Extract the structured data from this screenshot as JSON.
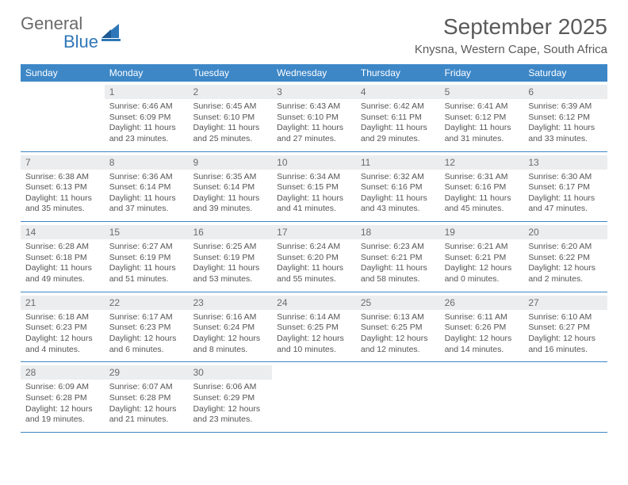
{
  "brand": {
    "general": "General",
    "blue": "Blue"
  },
  "title": "September 2025",
  "location": "Knysna, Western Cape, South Africa",
  "accent_color": "#3d87c7",
  "daynum_bg": "#ecedef",
  "dow": [
    "Sunday",
    "Monday",
    "Tuesday",
    "Wednesday",
    "Thursday",
    "Friday",
    "Saturday"
  ],
  "weeks": [
    [
      {
        "n": "",
        "sr": "",
        "ss": "",
        "dl": ""
      },
      {
        "n": "1",
        "sr": "Sunrise: 6:46 AM",
        "ss": "Sunset: 6:09 PM",
        "dl": "Daylight: 11 hours and 23 minutes."
      },
      {
        "n": "2",
        "sr": "Sunrise: 6:45 AM",
        "ss": "Sunset: 6:10 PM",
        "dl": "Daylight: 11 hours and 25 minutes."
      },
      {
        "n": "3",
        "sr": "Sunrise: 6:43 AM",
        "ss": "Sunset: 6:10 PM",
        "dl": "Daylight: 11 hours and 27 minutes."
      },
      {
        "n": "4",
        "sr": "Sunrise: 6:42 AM",
        "ss": "Sunset: 6:11 PM",
        "dl": "Daylight: 11 hours and 29 minutes."
      },
      {
        "n": "5",
        "sr": "Sunrise: 6:41 AM",
        "ss": "Sunset: 6:12 PM",
        "dl": "Daylight: 11 hours and 31 minutes."
      },
      {
        "n": "6",
        "sr": "Sunrise: 6:39 AM",
        "ss": "Sunset: 6:12 PM",
        "dl": "Daylight: 11 hours and 33 minutes."
      }
    ],
    [
      {
        "n": "7",
        "sr": "Sunrise: 6:38 AM",
        "ss": "Sunset: 6:13 PM",
        "dl": "Daylight: 11 hours and 35 minutes."
      },
      {
        "n": "8",
        "sr": "Sunrise: 6:36 AM",
        "ss": "Sunset: 6:14 PM",
        "dl": "Daylight: 11 hours and 37 minutes."
      },
      {
        "n": "9",
        "sr": "Sunrise: 6:35 AM",
        "ss": "Sunset: 6:14 PM",
        "dl": "Daylight: 11 hours and 39 minutes."
      },
      {
        "n": "10",
        "sr": "Sunrise: 6:34 AM",
        "ss": "Sunset: 6:15 PM",
        "dl": "Daylight: 11 hours and 41 minutes."
      },
      {
        "n": "11",
        "sr": "Sunrise: 6:32 AM",
        "ss": "Sunset: 6:16 PM",
        "dl": "Daylight: 11 hours and 43 minutes."
      },
      {
        "n": "12",
        "sr": "Sunrise: 6:31 AM",
        "ss": "Sunset: 6:16 PM",
        "dl": "Daylight: 11 hours and 45 minutes."
      },
      {
        "n": "13",
        "sr": "Sunrise: 6:30 AM",
        "ss": "Sunset: 6:17 PM",
        "dl": "Daylight: 11 hours and 47 minutes."
      }
    ],
    [
      {
        "n": "14",
        "sr": "Sunrise: 6:28 AM",
        "ss": "Sunset: 6:18 PM",
        "dl": "Daylight: 11 hours and 49 minutes."
      },
      {
        "n": "15",
        "sr": "Sunrise: 6:27 AM",
        "ss": "Sunset: 6:19 PM",
        "dl": "Daylight: 11 hours and 51 minutes."
      },
      {
        "n": "16",
        "sr": "Sunrise: 6:25 AM",
        "ss": "Sunset: 6:19 PM",
        "dl": "Daylight: 11 hours and 53 minutes."
      },
      {
        "n": "17",
        "sr": "Sunrise: 6:24 AM",
        "ss": "Sunset: 6:20 PM",
        "dl": "Daylight: 11 hours and 55 minutes."
      },
      {
        "n": "18",
        "sr": "Sunrise: 6:23 AM",
        "ss": "Sunset: 6:21 PM",
        "dl": "Daylight: 11 hours and 58 minutes."
      },
      {
        "n": "19",
        "sr": "Sunrise: 6:21 AM",
        "ss": "Sunset: 6:21 PM",
        "dl": "Daylight: 12 hours and 0 minutes."
      },
      {
        "n": "20",
        "sr": "Sunrise: 6:20 AM",
        "ss": "Sunset: 6:22 PM",
        "dl": "Daylight: 12 hours and 2 minutes."
      }
    ],
    [
      {
        "n": "21",
        "sr": "Sunrise: 6:18 AM",
        "ss": "Sunset: 6:23 PM",
        "dl": "Daylight: 12 hours and 4 minutes."
      },
      {
        "n": "22",
        "sr": "Sunrise: 6:17 AM",
        "ss": "Sunset: 6:23 PM",
        "dl": "Daylight: 12 hours and 6 minutes."
      },
      {
        "n": "23",
        "sr": "Sunrise: 6:16 AM",
        "ss": "Sunset: 6:24 PM",
        "dl": "Daylight: 12 hours and 8 minutes."
      },
      {
        "n": "24",
        "sr": "Sunrise: 6:14 AM",
        "ss": "Sunset: 6:25 PM",
        "dl": "Daylight: 12 hours and 10 minutes."
      },
      {
        "n": "25",
        "sr": "Sunrise: 6:13 AM",
        "ss": "Sunset: 6:25 PM",
        "dl": "Daylight: 12 hours and 12 minutes."
      },
      {
        "n": "26",
        "sr": "Sunrise: 6:11 AM",
        "ss": "Sunset: 6:26 PM",
        "dl": "Daylight: 12 hours and 14 minutes."
      },
      {
        "n": "27",
        "sr": "Sunrise: 6:10 AM",
        "ss": "Sunset: 6:27 PM",
        "dl": "Daylight: 12 hours and 16 minutes."
      }
    ],
    [
      {
        "n": "28",
        "sr": "Sunrise: 6:09 AM",
        "ss": "Sunset: 6:28 PM",
        "dl": "Daylight: 12 hours and 19 minutes."
      },
      {
        "n": "29",
        "sr": "Sunrise: 6:07 AM",
        "ss": "Sunset: 6:28 PM",
        "dl": "Daylight: 12 hours and 21 minutes."
      },
      {
        "n": "30",
        "sr": "Sunrise: 6:06 AM",
        "ss": "Sunset: 6:29 PM",
        "dl": "Daylight: 12 hours and 23 minutes."
      },
      {
        "n": "",
        "sr": "",
        "ss": "",
        "dl": ""
      },
      {
        "n": "",
        "sr": "",
        "ss": "",
        "dl": ""
      },
      {
        "n": "",
        "sr": "",
        "ss": "",
        "dl": ""
      },
      {
        "n": "",
        "sr": "",
        "ss": "",
        "dl": ""
      }
    ]
  ]
}
